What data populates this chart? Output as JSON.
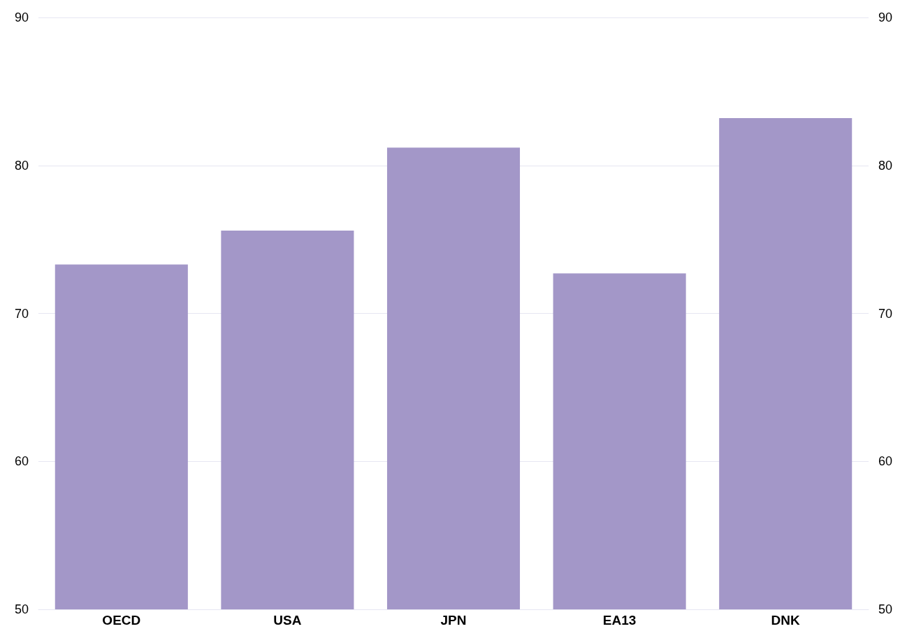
{
  "chart_data": {
    "type": "bar",
    "categories": [
      "OECD",
      "USA",
      "JPN",
      "EA13",
      "DNK"
    ],
    "values": [
      73.3,
      75.6,
      81.2,
      72.7,
      83.2
    ],
    "color": "#a397c8",
    "ylim": [
      50,
      90
    ],
    "yticks": [
      50,
      60,
      70,
      80,
      90
    ],
    "y2lim": [
      50,
      90
    ],
    "y2ticks": [
      50,
      60,
      70,
      80,
      90
    ],
    "grid": "y"
  }
}
